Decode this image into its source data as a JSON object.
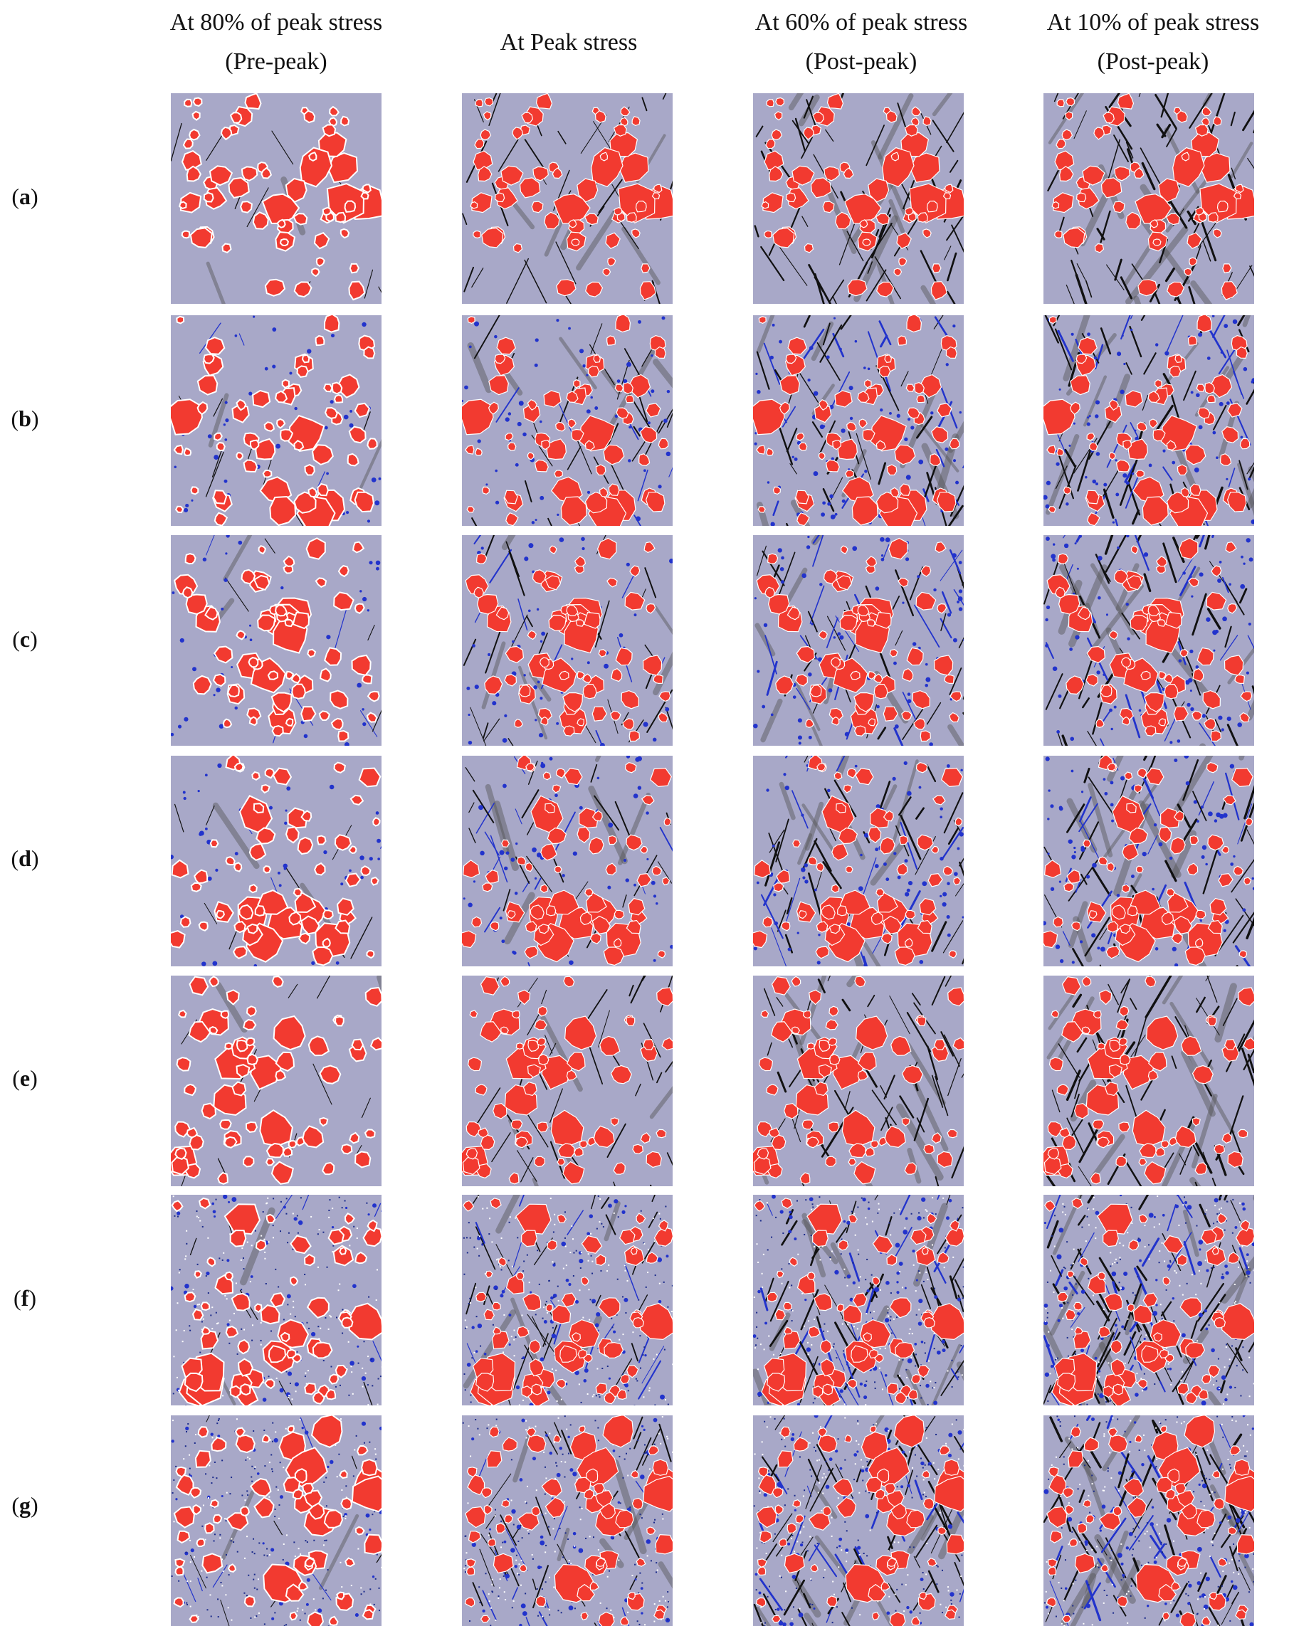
{
  "columns": [
    {
      "line1": "At 80% of peak stress",
      "line2": "(Pre-peak)"
    },
    {
      "line1": "At Peak stress",
      "line2": ""
    },
    {
      "line1": "At 60% of peak stress",
      "line2": "(Post-peak)"
    },
    {
      "line1": "At 10% of peak stress",
      "line2": "(Post-peak)"
    }
  ],
  "rows": [
    {
      "open": "(",
      "letter": "a",
      "close": ")"
    },
    {
      "open": "(",
      "letter": "b",
      "close": ")"
    },
    {
      "open": "(",
      "letter": "c",
      "close": ")"
    },
    {
      "open": "(",
      "letter": "d",
      "close": ")"
    },
    {
      "open": "(",
      "letter": "e",
      "close": ")"
    },
    {
      "open": "(",
      "letter": "f",
      "close": ")"
    },
    {
      "open": "(",
      "letter": "g",
      "close": ")"
    }
  ],
  "colors": {
    "matrix": "#a8a8c8",
    "aggregate": "#f23a30",
    "aggregate_rim": "#ffffff",
    "crack_dark": "#111111",
    "crack_blue": "#2233cc",
    "crack_gray": "#555555"
  }
}
